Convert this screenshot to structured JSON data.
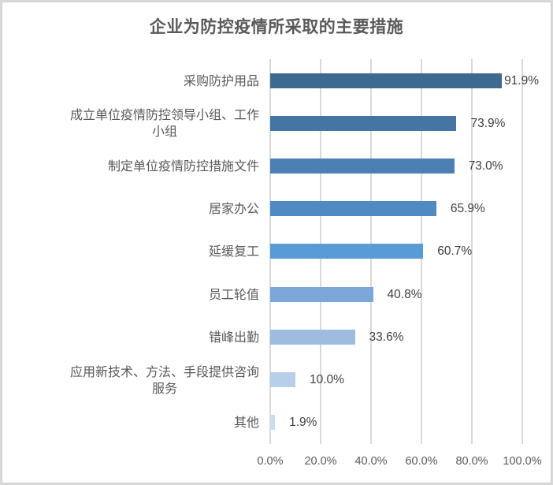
{
  "chart_data": {
    "type": "bar",
    "orientation": "horizontal",
    "title": "企业为防控疫情所采取的主要措施",
    "categories": [
      "采购防护用品",
      "成立单位疫情防控领导小组、工作小组",
      "制定单位疫情防控措施文件",
      "居家办公",
      "延缓复工",
      "员工轮值",
      "错峰出勤",
      "应用新技术、方法、手段提供咨询服务",
      "其他"
    ],
    "values": [
      91.9,
      73.9,
      73.0,
      65.9,
      60.7,
      40.8,
      33.6,
      10.0,
      1.9
    ],
    "value_labels": [
      "91.9%",
      "73.9%",
      "73.0%",
      "65.9%",
      "60.7%",
      "40.8%",
      "33.6%",
      "10.0%",
      "1.9%"
    ],
    "xlabel": "",
    "ylabel": "",
    "xlim": [
      0,
      100
    ],
    "x_ticks": [
      "0.0%",
      "20.0%",
      "40.0%",
      "60.0%",
      "80.0%",
      "100.0%"
    ],
    "grid": "vertical",
    "legend": "none",
    "bar_colors": [
      "#3e6a91",
      "#4475a3",
      "#4a80b4",
      "#5189c2",
      "#589bd6",
      "#7aa6d8",
      "#9ebbe0",
      "#b8cfea",
      "#ccdcef"
    ]
  },
  "labels_display": [
    [
      "采购防护用品"
    ],
    [
      "成立单位疫情防控领导小组、工作",
      "小组"
    ],
    [
      "制定单位疫情防控措施文件"
    ],
    [
      "居家办公"
    ],
    [
      "延缓复工"
    ],
    [
      "员工轮值"
    ],
    [
      "错峰出勤"
    ],
    [
      "应用新技术、方法、手段提供咨询",
      "服务"
    ],
    [
      "其他"
    ]
  ]
}
